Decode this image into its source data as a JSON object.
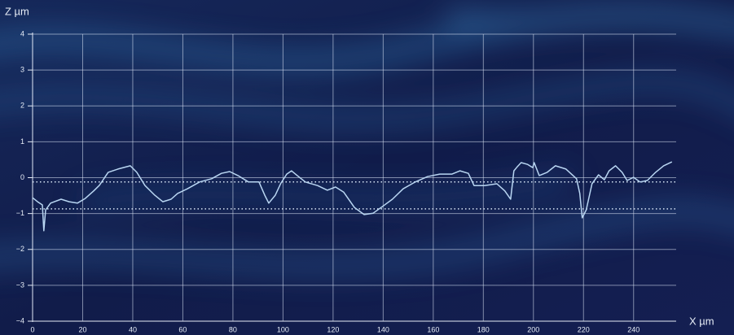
{
  "chart_data": {
    "type": "line",
    "y_label": "Z µm",
    "x_label": "X µm",
    "color": "#b9d6f2",
    "x": [
      0,
      2,
      3.9,
      4.5,
      5.2,
      7.2,
      11.4,
      14.6,
      17.9,
      21,
      24.4,
      26.7,
      30.2,
      34.1,
      39,
      41.6,
      44.9,
      48.8,
      52,
      55.3,
      57.9,
      61.8,
      66.7,
      71.5,
      75.4,
      78.7,
      82,
      86.2,
      90.4,
      92.7,
      94.3,
      96.9,
      99.2,
      101.5,
      103.4,
      105.7,
      108.9,
      113.8,
      117.7,
      121,
      124.2,
      128.5,
      132.4,
      136,
      139.8,
      143.7,
      148,
      152.8,
      157.7,
      162.6,
      167.5,
      170.7,
      174,
      176.3,
      180.5,
      185.4,
      188.6,
      190.9,
      192.2,
      193.5,
      195.1,
      197.7,
      199.7,
      200.3,
      202.3,
      205.5,
      208.8,
      213,
      217.2,
      218.5,
      219.5,
      221.1,
      223.4,
      226,
      228.3,
      230.2,
      232.8,
      235.4,
      237.4,
      240,
      242.6,
      245.5,
      248.8,
      252,
      255.3
    ],
    "values": [
      -0.56,
      -0.67,
      -0.76,
      -1.48,
      -0.9,
      -0.71,
      -0.6,
      -0.67,
      -0.71,
      -0.58,
      -0.37,
      -0.21,
      0.15,
      0.24,
      0.33,
      0.15,
      -0.22,
      -0.49,
      -0.67,
      -0.6,
      -0.44,
      -0.31,
      -0.12,
      -0.03,
      0.12,
      0.17,
      0.06,
      -0.12,
      -0.12,
      -0.49,
      -0.71,
      -0.49,
      -0.15,
      0.1,
      0.19,
      0.06,
      -0.12,
      -0.22,
      -0.35,
      -0.26,
      -0.4,
      -0.83,
      -1.03,
      -0.99,
      -0.8,
      -0.6,
      -0.31,
      -0.12,
      0.03,
      0.1,
      0.1,
      0.19,
      0.12,
      -0.22,
      -0.22,
      -0.17,
      -0.37,
      -0.6,
      0.19,
      0.3,
      0.42,
      0.37,
      0.28,
      0.42,
      0.06,
      0.15,
      0.33,
      0.24,
      -0.03,
      -0.44,
      -1.12,
      -0.9,
      -0.17,
      0.08,
      -0.06,
      0.19,
      0.33,
      0.15,
      -0.08,
      0.01,
      -0.12,
      -0.08,
      0.15,
      0.33,
      0.44
    ],
    "reference_lines": [
      -0.12,
      -0.87
    ],
    "xlim": [
      0,
      257
    ],
    "ylim": [
      -4,
      4
    ],
    "xticks": [
      0,
      20,
      40,
      60,
      80,
      100,
      120,
      140,
      160,
      180,
      200,
      220,
      240
    ],
    "yticks": [
      {
        "value": -4,
        "label": "−4"
      },
      {
        "value": -3,
        "label": "−3"
      },
      {
        "value": -2,
        "label": "−2"
      },
      {
        "value": -1,
        "label": "−1"
      },
      0,
      1,
      2,
      3,
      4
    ],
    "grid": true
  }
}
